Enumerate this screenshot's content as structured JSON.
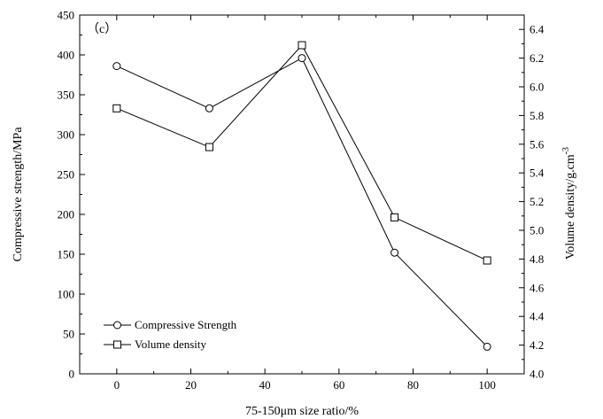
{
  "chart_data": {
    "type": "line",
    "panel_label": "（c）",
    "xlabel": "75-150μm size ratio/%",
    "ylabel_left": "Compressive strength/MPa",
    "ylabel_right": "Volume density/g.cm",
    "ylabel_right_sup": "-3",
    "xlim": [
      -10,
      110
    ],
    "ylim_left": [
      0,
      450
    ],
    "ylim_right": [
      4.0,
      6.5
    ],
    "x_ticks": [
      0,
      20,
      40,
      60,
      80,
      100
    ],
    "y_left_ticks": [
      0,
      50,
      100,
      150,
      200,
      250,
      300,
      350,
      400,
      450
    ],
    "y_right_ticks": [
      4.0,
      4.2,
      4.4,
      4.6,
      4.8,
      5.0,
      5.2,
      5.4,
      5.6,
      5.8,
      6.0,
      6.2,
      6.4
    ],
    "grid": false,
    "legend_position": "bottom-left",
    "series": [
      {
        "name": "Compressive Strength",
        "axis": "left",
        "marker": "circle",
        "x": [
          0,
          25,
          50,
          75,
          100
        ],
        "values": [
          386,
          333,
          396,
          152,
          34
        ]
      },
      {
        "name": "Volume density",
        "axis": "right",
        "marker": "square",
        "x": [
          0,
          25,
          50,
          75,
          100
        ],
        "values": [
          5.85,
          5.58,
          6.29,
          5.09,
          4.79
        ]
      }
    ]
  }
}
